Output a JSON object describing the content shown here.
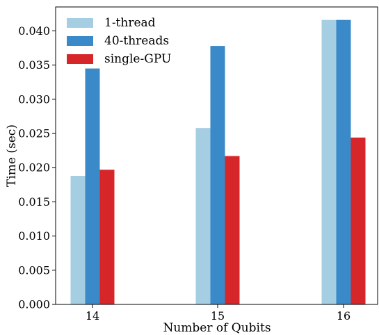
{
  "chart_data": {
    "type": "bar",
    "categories": [
      "14",
      "15",
      "16"
    ],
    "series": [
      {
        "name": "1-thread",
        "color": "#a6cee3",
        "values": [
          0.0188,
          0.0258,
          0.0416
        ]
      },
      {
        "name": "40-threads",
        "color": "#3a89c9",
        "values": [
          0.0345,
          0.0378,
          0.0416
        ]
      },
      {
        "name": "single-GPU",
        "color": "#d7262a",
        "values": [
          0.0197,
          0.0217,
          0.0244
        ]
      }
    ],
    "xlabel": "Number of Qubits",
    "ylabel": "Time (sec)",
    "ylim": [
      0,
      0.0435
    ],
    "yticks": [
      "0.000",
      "0.005",
      "0.010",
      "0.015",
      "0.020",
      "0.025",
      "0.030",
      "0.035",
      "0.040"
    ],
    "grid": false,
    "legend_position": "top-left"
  }
}
